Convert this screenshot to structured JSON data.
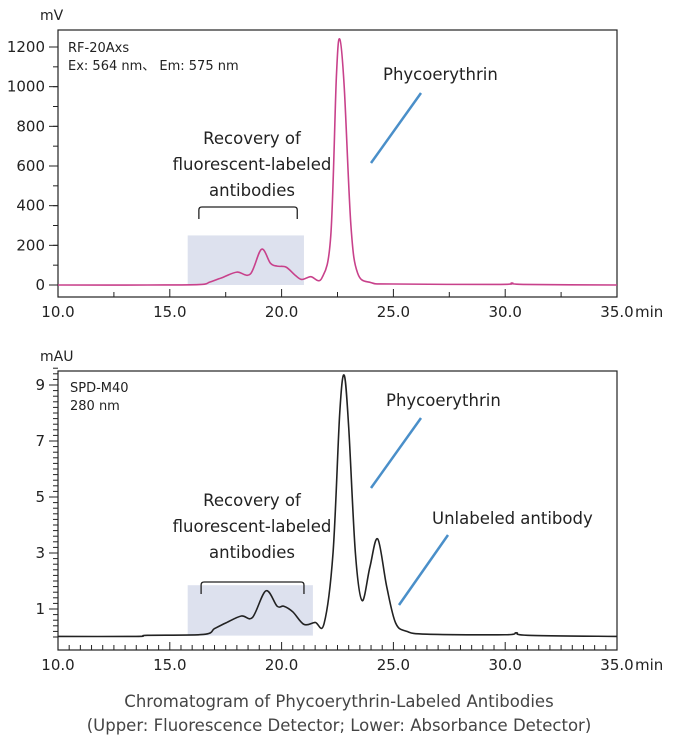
{
  "chart_data": [
    {
      "type": "line",
      "ylabel": "mV",
      "xunit": "min",
      "xlim": [
        10,
        35
      ],
      "ylim": [
        -30,
        1290
      ],
      "xticks": [
        "10.0",
        "15.0",
        "20.0",
        "25.0",
        "30.0",
        "35.0"
      ],
      "yticks": [
        0,
        200,
        400,
        600,
        800,
        1000,
        1200
      ],
      "color": "#c8418b",
      "detector": [
        "RF-20Axs",
        "Ex: 564 nm、 Em: 575 nm"
      ],
      "annotations": [
        {
          "text": "Phycoerythrin"
        }
      ],
      "region_label": [
        "Recovery of",
        "fluorescent-labeled",
        "antibodies"
      ],
      "region": {
        "x": [
          15.8,
          21.0
        ],
        "y": [
          0,
          250
        ]
      },
      "x": [
        10,
        14,
        16.3,
        16.8,
        17.4,
        18,
        18.6,
        19.1,
        19.5,
        19.8,
        20.2,
        20.6,
        20.9,
        21.3,
        21.8,
        22.2,
        22.45,
        22.6,
        22.8,
        23.1,
        23.4,
        24,
        25,
        29.8,
        30.3,
        30.8,
        35
      ],
      "y": [
        0,
        0,
        2,
        15,
        40,
        65,
        55,
        180,
        110,
        95,
        90,
        50,
        28,
        42,
        35,
        250,
        1050,
        1240,
        1000,
        300,
        60,
        12,
        5,
        3,
        10,
        3,
        0
      ]
    },
    {
      "type": "line",
      "ylabel": "mAU",
      "xunit": "min",
      "xlim": [
        10,
        35
      ],
      "ylim": [
        -0.6,
        9.8
      ],
      "xticks": [
        "10.0",
        "15.0",
        "20.0",
        "25.0",
        "30.0",
        "35.0"
      ],
      "yticks": [
        1,
        3,
        5,
        7,
        9
      ],
      "color": "#222222",
      "detector": [
        "SPD-M40",
        "280 nm"
      ],
      "annotations": [
        {
          "text": "Phycoerythrin"
        },
        {
          "text": "Unlabeled antibody"
        }
      ],
      "region_label": [
        "Recovery of",
        "fluorescent-labeled",
        "antibodies"
      ],
      "region": {
        "x": [
          15.8,
          21.4
        ],
        "y": [
          0.05,
          1.85
        ]
      },
      "x": [
        10,
        13.5,
        14,
        16.5,
        17,
        17.5,
        18.2,
        18.7,
        19.3,
        19.8,
        20.1,
        20.5,
        21,
        21.5,
        21.9,
        22.3,
        22.6,
        22.8,
        23.0,
        23.3,
        23.6,
        23.95,
        24.3,
        24.7,
        25.1,
        25.6,
        26.5,
        30,
        30.5,
        31,
        35
      ],
      "y": [
        0.02,
        0.02,
        0.06,
        0.09,
        0.3,
        0.5,
        0.75,
        0.7,
        1.65,
        1.1,
        1.1,
        0.9,
        0.45,
        0.52,
        0.48,
        3,
        8,
        9.35,
        7.5,
        3,
        1.3,
        2.5,
        3.5,
        1.8,
        0.5,
        0.2,
        0.1,
        0.08,
        0.15,
        0.06,
        0.02
      ]
    }
  ],
  "caption": {
    "line1": "Chromatogram of Phycoerythrin-Labeled Antibodies",
    "line2": "(Upper: Fluorescence Detector; Lower: Absorbance Detector)"
  }
}
